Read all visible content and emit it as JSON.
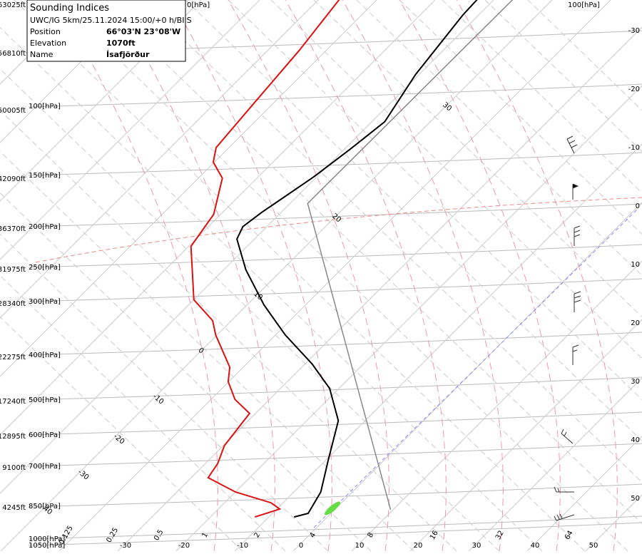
{
  "info_box": {
    "title": "Sounding Indices",
    "run": "UWC/IG 5km/25.11.2024 15:00/+0 h/BIIS",
    "rows": [
      {
        "label": "Position",
        "value": "66°03'N 23°08'W"
      },
      {
        "label": "Elevation",
        "value": "1070ft"
      },
      {
        "label": "Name",
        "value": "Ísafjörður"
      }
    ]
  },
  "top_labels": [
    "0[hPa]",
    "100[hPa]"
  ],
  "altitudes": [
    "63025ft",
    "56810ft",
    "50005ft",
    "42090ft",
    "36370ft",
    "31975ft",
    "28340ft",
    "22275ft",
    "17240ft",
    "12895ft",
    "9100ft",
    "4245ft"
  ],
  "pressure_labels": [
    "100[hPa]",
    "150[hPa]",
    "200[hPa]",
    "250[hPa]",
    "300[hPa]",
    "400[hPa]",
    "500[hPa]",
    "600[hPa]",
    "700[hPa]",
    "850[hPa]",
    "1000[hPa]",
    "1050[hPa]"
  ],
  "right_temperatures": [
    -30,
    -20,
    -10,
    0,
    10,
    20,
    30,
    40,
    50
  ],
  "bottom_temperatures": [
    -30,
    -20,
    -10,
    0,
    10,
    20,
    30,
    40,
    50
  ],
  "mixing_ratios": [
    0.125,
    0.25,
    0.5,
    1,
    2,
    4,
    8,
    16,
    32,
    64
  ],
  "adiabat_labels": [
    40,
    -30,
    -20,
    -10,
    0,
    10,
    20,
    30
  ],
  "profiles": [
    {
      "name": "temperature",
      "color": "#000000",
      "pressure": [
        889,
        872,
        778,
        656,
        532,
        448,
        393,
        337,
        287,
        238,
        202,
        189,
        175,
        145,
        125,
        108,
        84,
        61,
        56
      ],
      "temperature": [
        -5.7,
        -3.9,
        -5.4,
        -9.6,
        -14.6,
        -21.6,
        -28.8,
        -38.3,
        -47.1,
        -56.2,
        -63.0,
        -64.1,
        -63.3,
        -60.5,
        -59.0,
        -57.8,
        -60.6,
        -62.7,
        -62.9
      ]
    },
    {
      "name": "dewpoint",
      "color": "#dd1111",
      "pressure": [
        889,
        852,
        824,
        778,
        721,
        668,
        608,
        536,
        512,
        475,
        432,
        400,
        337,
        312,
        279,
        253,
        210,
        177,
        146,
        134,
        124,
        96,
        74,
        56
      ],
      "temperature": [
        -12.4,
        -9.5,
        -12.1,
        -20.0,
        -27.1,
        -27.9,
        -29.8,
        -30.7,
        -31.0,
        -35.9,
        -40.1,
        -42.3,
        -50.2,
        -53.2,
        -60.0,
        -63.3,
        -69.6,
        -71.2,
        -75.9,
        -80.2,
        -82.2,
        -83.4,
        -84.6,
        -86.5
      ]
    },
    {
      "name": "parcel",
      "color": "#888888",
      "pressure": [
        856,
        167,
        56
      ],
      "temperature": [
        9.6,
        -57.0,
        -56.8
      ]
    }
  ]
}
